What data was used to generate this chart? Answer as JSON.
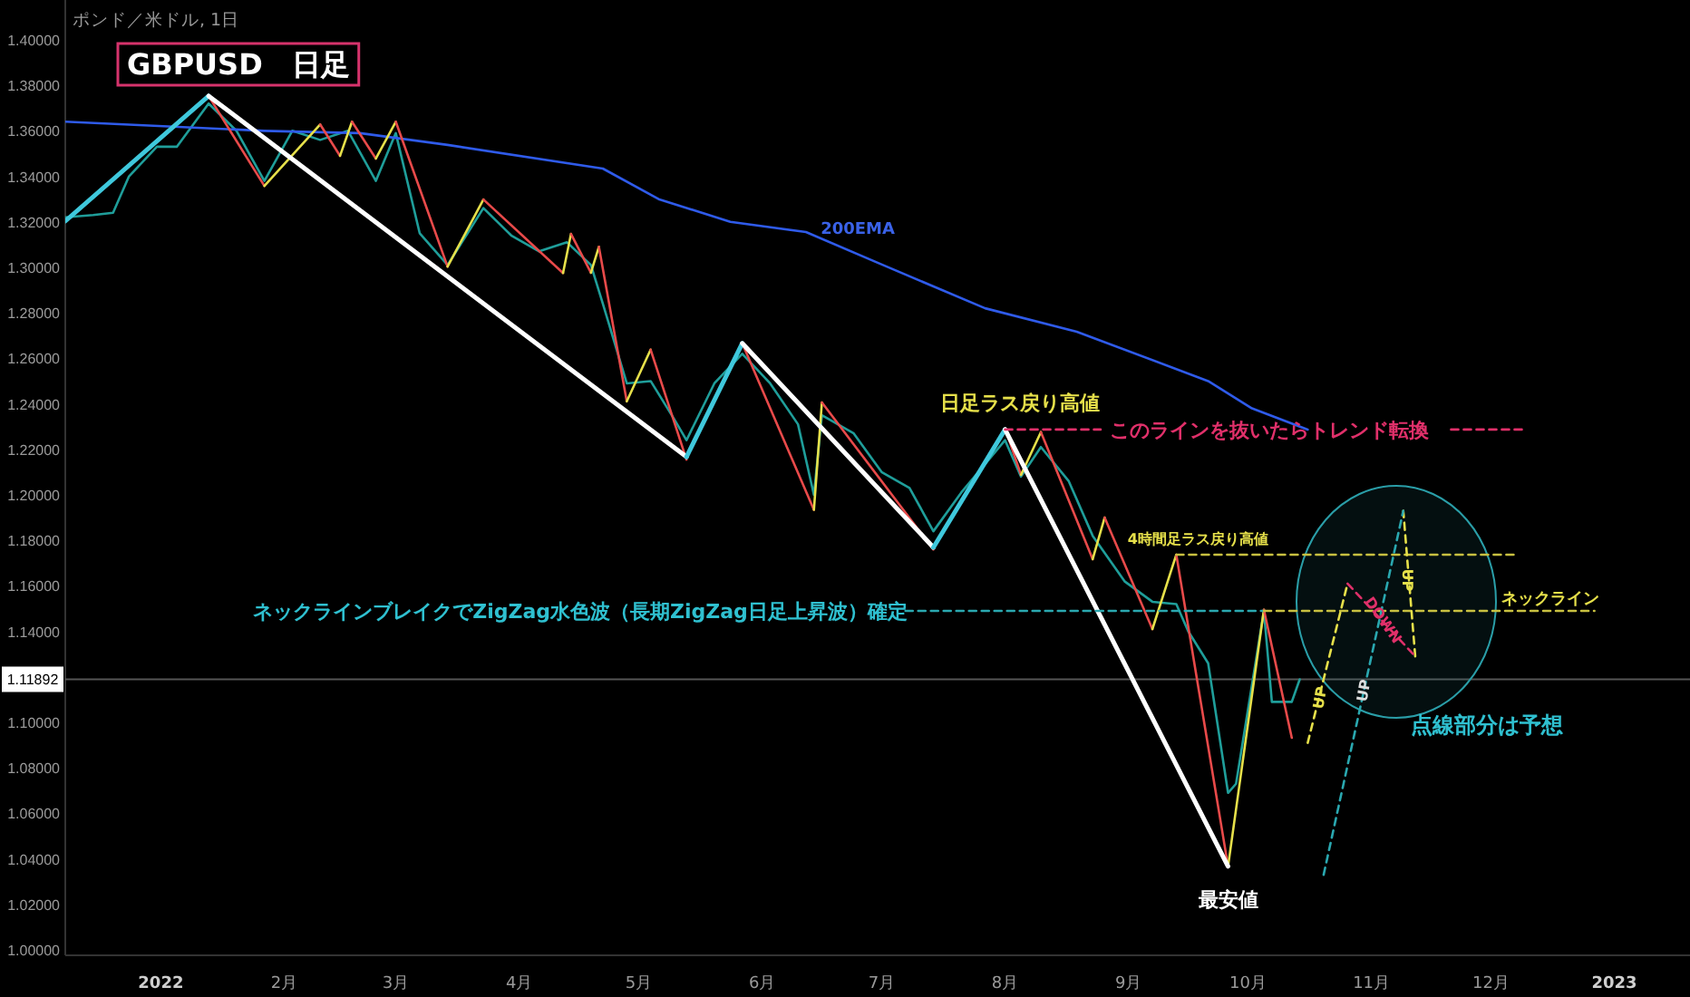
{
  "chart_data": {
    "type": "line",
    "title": "GBPUSD　日足",
    "subtitle": "ポンド／米ドル, 1日",
    "xlim": [
      "2021-12-08",
      "2023-01-20"
    ],
    "xticks": [
      {
        "value": "2022-01-01",
        "label": "2022"
      },
      {
        "value": "2022-02-01",
        "label": "2月"
      },
      {
        "value": "2022-03-01",
        "label": "3月"
      },
      {
        "value": "2022-04-01",
        "label": "4月"
      },
      {
        "value": "2022-05-01",
        "label": "5月"
      },
      {
        "value": "2022-06-01",
        "label": "6月"
      },
      {
        "value": "2022-07-01",
        "label": "7月"
      },
      {
        "value": "2022-08-01",
        "label": "8月"
      },
      {
        "value": "2022-09-01",
        "label": "9月"
      },
      {
        "value": "2022-10-01",
        "label": "10月"
      },
      {
        "value": "2022-11-01",
        "label": "11月"
      },
      {
        "value": "2022-12-01",
        "label": "12月"
      },
      {
        "value": "2023-01-01",
        "label": "2023"
      }
    ],
    "ylim": [
      0.9976,
      1.4175
    ],
    "yticks": [
      {
        "value": 1.0,
        "label": "1.00000"
      },
      {
        "value": 1.02,
        "label": "1.02000"
      },
      {
        "value": 1.04,
        "label": "1.04000"
      },
      {
        "value": 1.06,
        "label": "1.06000"
      },
      {
        "value": 1.08,
        "label": "1.08000"
      },
      {
        "value": 1.1,
        "label": "1.10000"
      },
      {
        "value": 1.14,
        "label": "1.14000"
      },
      {
        "value": 1.16,
        "label": "1.16000"
      },
      {
        "value": 1.18,
        "label": "1.18000"
      },
      {
        "value": 1.2,
        "label": "1.20000"
      },
      {
        "value": 1.22,
        "label": "1.22000"
      },
      {
        "value": 1.24,
        "label": "1.24000"
      },
      {
        "value": 1.26,
        "label": "1.26000"
      },
      {
        "value": 1.28,
        "label": "1.28000"
      },
      {
        "value": 1.3,
        "label": "1.30000"
      },
      {
        "value": 1.32,
        "label": "1.32000"
      },
      {
        "value": 1.34,
        "label": "1.34000"
      },
      {
        "value": 1.36,
        "label": "1.36000"
      },
      {
        "value": 1.38,
        "label": "1.38000"
      },
      {
        "value": 1.4,
        "label": "1.40000"
      }
    ],
    "grid": false,
    "ref_lines": [
      {
        "axis": "y",
        "value": 1.11892,
        "label": "1.11892",
        "color": "#555555"
      }
    ],
    "series": [
      {
        "color": "#1f9e9a",
        "x": [
          "2021-12-08",
          "2021-12-15",
          "2021-12-20",
          "2021-12-24",
          "2021-12-31",
          "2022-01-05",
          "2022-01-13",
          "2022-01-20",
          "2022-01-27",
          "2022-02-03",
          "2022-02-10",
          "2022-02-17",
          "2022-02-24",
          "2022-03-01",
          "2022-03-07",
          "2022-03-14",
          "2022-03-23",
          "2022-03-30",
          "2022-04-06",
          "2022-04-13",
          "2022-04-19",
          "2022-04-22",
          "2022-04-28",
          "2022-05-04",
          "2022-05-10",
          "2022-05-13",
          "2022-05-20",
          "2022-05-27",
          "2022-06-03",
          "2022-06-10",
          "2022-06-14",
          "2022-06-16",
          "2022-06-24",
          "2022-07-01",
          "2022-07-08",
          "2022-07-14",
          "2022-07-21",
          "2022-08-01",
          "2022-08-05",
          "2022-08-10",
          "2022-08-17",
          "2022-08-23",
          "2022-08-31",
          "2022-09-07",
          "2022-09-13",
          "2022-09-16",
          "2022-09-21",
          "2022-09-26",
          "2022-09-28",
          "2022-10-05",
          "2022-10-07",
          "2022-10-12",
          "2022-10-14"
        ],
        "values": [
          1.322,
          1.323,
          1.324,
          1.34,
          1.353,
          1.353,
          1.372,
          1.36,
          1.338,
          1.36,
          1.356,
          1.36,
          1.338,
          1.359,
          1.315,
          1.301,
          1.326,
          1.314,
          1.307,
          1.311,
          1.301,
          1.284,
          1.249,
          1.25,
          1.233,
          1.224,
          1.249,
          1.262,
          1.249,
          1.231,
          1.2,
          1.235,
          1.227,
          1.21,
          1.203,
          1.184,
          1.201,
          1.224,
          1.208,
          1.221,
          1.206,
          1.182,
          1.162,
          1.153,
          1.152,
          1.14,
          1.126,
          1.069,
          1.073,
          1.149,
          1.109,
          1.109,
          1.1189
        ]
      },
      {
        "color": "#2f5bea",
        "x": [
          "2021-12-08",
          "2022-01-27",
          "2022-02-20",
          "2022-03-14",
          "2022-04-22",
          "2022-05-06",
          "2022-05-24",
          "2022-06-12",
          "2022-06-30",
          "2022-07-27",
          "2022-08-19",
          "2022-09-21",
          "2022-10-02",
          "2022-10-16"
        ],
        "values": [
          1.364,
          1.36,
          1.359,
          1.3538,
          1.3434,
          1.33,
          1.32,
          1.3155,
          1.302,
          1.282,
          1.2717,
          1.25,
          1.238,
          1.2287
        ]
      },
      {
        "color": "#e84a4a",
        "x": [
          "2022-01-13",
          "2022-01-27"
        ],
        "values": [
          1.3753,
          1.3358
        ]
      },
      {
        "color": "#e6e04a",
        "x": [
          "2022-01-27",
          "2022-02-10"
        ],
        "values": [
          1.3358,
          1.3628
        ]
      },
      {
        "color": "#e84a4a",
        "x": [
          "2022-02-10",
          "2022-02-15"
        ],
        "values": [
          1.3628,
          1.349
        ]
      },
      {
        "color": "#e6e04a",
        "x": [
          "2022-02-15",
          "2022-02-18"
        ],
        "values": [
          1.349,
          1.364
        ]
      },
      {
        "color": "#e84a4a",
        "x": [
          "2022-02-18",
          "2022-02-24"
        ],
        "values": [
          1.364,
          1.3478
        ]
      },
      {
        "color": "#e6e04a",
        "x": [
          "2022-02-24",
          "2022-03-01"
        ],
        "values": [
          1.3478,
          1.364
        ]
      },
      {
        "color": "#e84a4a",
        "x": [
          "2022-03-01",
          "2022-03-14"
        ],
        "values": [
          1.364,
          1.3003
        ]
      },
      {
        "color": "#e6e04a",
        "x": [
          "2022-03-14",
          "2022-03-23"
        ],
        "values": [
          1.3003,
          1.3298
        ]
      },
      {
        "color": "#e84a4a",
        "x": [
          "2022-03-23",
          "2022-04-12"
        ],
        "values": [
          1.3298,
          1.2975
        ]
      },
      {
        "color": "#e6e04a",
        "x": [
          "2022-04-12",
          "2022-04-14"
        ],
        "values": [
          1.2975,
          1.3147
        ]
      },
      {
        "color": "#e84a4a",
        "x": [
          "2022-04-14",
          "2022-04-19"
        ],
        "values": [
          1.3147,
          1.2976
        ]
      },
      {
        "color": "#e6e04a",
        "x": [
          "2022-04-19",
          "2022-04-21"
        ],
        "values": [
          1.2976,
          1.309
        ]
      },
      {
        "color": "#e84a4a",
        "x": [
          "2022-04-21",
          "2022-04-28"
        ],
        "values": [
          1.309,
          1.2411
        ]
      },
      {
        "color": "#e6e04a",
        "x": [
          "2022-04-28",
          "2022-05-04"
        ],
        "values": [
          1.2411,
          1.2638
        ]
      },
      {
        "color": "#e84a4a",
        "x": [
          "2022-05-04",
          "2022-05-13"
        ],
        "values": [
          1.2638,
          1.2155
        ]
      },
      {
        "color": "#e84a4a",
        "x": [
          "2022-05-27",
          "2022-06-14"
        ],
        "values": [
          1.2666,
          1.1934
        ]
      },
      {
        "color": "#e6e04a",
        "x": [
          "2022-06-14",
          "2022-06-16"
        ],
        "values": [
          1.1934,
          1.2406
        ]
      },
      {
        "color": "#e84a4a",
        "x": [
          "2022-06-16",
          "2022-07-14"
        ],
        "values": [
          1.2406,
          1.176
        ]
      },
      {
        "color": "#e84a4a",
        "x": [
          "2022-08-01",
          "2022-08-05"
        ],
        "values": [
          1.2293,
          1.2088
        ]
      },
      {
        "color": "#e6e04a",
        "x": [
          "2022-08-05",
          "2022-08-10"
        ],
        "values": [
          1.2088,
          1.2276
        ]
      },
      {
        "color": "#e84a4a",
        "x": [
          "2022-08-10",
          "2022-08-23"
        ],
        "values": [
          1.2276,
          1.1717
        ]
      },
      {
        "color": "#e6e04a",
        "x": [
          "2022-08-23",
          "2022-08-26"
        ],
        "values": [
          1.1717,
          1.19
        ]
      },
      {
        "color": "#e84a4a",
        "x": [
          "2022-08-26",
          "2022-09-07"
        ],
        "values": [
          1.19,
          1.141
        ]
      },
      {
        "color": "#e6e04a",
        "x": [
          "2022-09-07",
          "2022-09-13"
        ],
        "values": [
          1.141,
          1.1737
        ]
      },
      {
        "color": "#e84a4a",
        "x": [
          "2022-09-13",
          "2022-09-26"
        ],
        "values": [
          1.1737,
          1.0367
        ]
      },
      {
        "color": "#e6e04a",
        "x": [
          "2022-09-26",
          "2022-10-05"
        ],
        "values": [
          1.0367,
          1.1495
        ]
      },
      {
        "color": "#e84a4a",
        "x": [
          "2022-10-05",
          "2022-10-12"
        ],
        "values": [
          1.1495,
          1.0932
        ]
      },
      {
        "color": "#3fc8dc",
        "x": [
          "2021-12-08",
          "2022-01-13"
        ],
        "values": [
          1.3203,
          1.3753
        ]
      },
      {
        "color": "#ffffff",
        "x": [
          "2022-01-13",
          "2022-05-13"
        ],
        "values": [
          1.3753,
          1.2167
        ]
      },
      {
        "color": "#3fc8dc",
        "x": [
          "2022-05-13",
          "2022-05-27"
        ],
        "values": [
          1.2167,
          1.2666
        ]
      },
      {
        "color": "#ffffff",
        "x": [
          "2022-05-27",
          "2022-07-14"
        ],
        "values": [
          1.2666,
          1.1769
        ]
      },
      {
        "color": "#3fc8dc",
        "x": [
          "2022-07-14",
          "2022-08-01"
        ],
        "values": [
          1.1769,
          1.2287
        ]
      },
      {
        "color": "#ffffff",
        "x": [
          "2022-08-01",
          "2022-09-26"
        ],
        "values": [
          1.2287,
          1.0367
        ]
      },
      {
        "color": "#e0306a",
        "line_style": "dashed",
        "x": [
          "2022-08-01",
          "2022-08-25"
        ],
        "values": [
          1.2287,
          1.2287
        ]
      },
      {
        "color": "#e0306a",
        "line_style": "dashed",
        "x": [
          "2022-11-21",
          "2022-12-09"
        ],
        "values": [
          1.2287,
          1.2287
        ]
      },
      {
        "color": "#c8c040",
        "line_style": "dashed",
        "x": [
          "2022-09-13",
          "2022-12-08"
        ],
        "values": [
          1.1737,
          1.1737
        ]
      },
      {
        "color": "#2aa8b0",
        "line_style": "dashed",
        "x": [
          "2022-07-07",
          "2022-10-05"
        ],
        "values": [
          1.149,
          1.149
        ]
      },
      {
        "color": "#c8c040",
        "line_style": "dashed",
        "x": [
          "2022-10-05",
          "2022-12-27"
        ],
        "values": [
          1.149,
          1.149
        ]
      },
      {
        "color": "#e6e04a",
        "line_style": "dashed",
        "x": [
          "2022-10-16",
          "2022-10-26"
        ],
        "values": [
          1.091,
          1.161
        ]
      },
      {
        "color": "#e6e04a",
        "line_style": "dashed",
        "x": [
          "2022-11-12",
          "2022-11-09"
        ],
        "values": [
          1.129,
          1.193
        ]
      },
      {
        "color": "#e0306a",
        "line_style": "dashed",
        "x": [
          "2022-10-26",
          "2022-11-12"
        ],
        "values": [
          1.161,
          1.129
        ]
      },
      {
        "color": "#2aa8b0",
        "line_style": "dashed",
        "x": [
          "2022-10-20",
          "2022-11-09"
        ],
        "values": [
          1.033,
          1.193
        ]
      }
    ],
    "annotations": [
      "200EMA",
      {
        "text": "日足ラス戻り高値",
        "x": "2022-08-01",
        "y": 1.2287
      },
      "このラインを抜いたらトレンド転換",
      {
        "text": "4時間足ラス戻り高値",
        "x": "2022-09-13",
        "y": 1.1737
      },
      "ネックラインブレイクでZigZag水色波（長期ZigZag日足上昇波）確定",
      "ネックライン",
      "点線部分は予想",
      {
        "text": "最安値",
        "x": "2022-09-26",
        "y": 1.0367
      },
      {
        "text": "UP",
        "x": "2022-10-19",
        "y": 1.1108
      },
      {
        "text": "UP",
        "x": "2022-10-30",
        "y": 1.114
      },
      {
        "text": "DOWN",
        "x": "2022-11-04",
        "y": 1.145
      },
      {
        "text": "UP",
        "x": "2022-11-10",
        "y": 1.1626
      }
    ]
  }
}
